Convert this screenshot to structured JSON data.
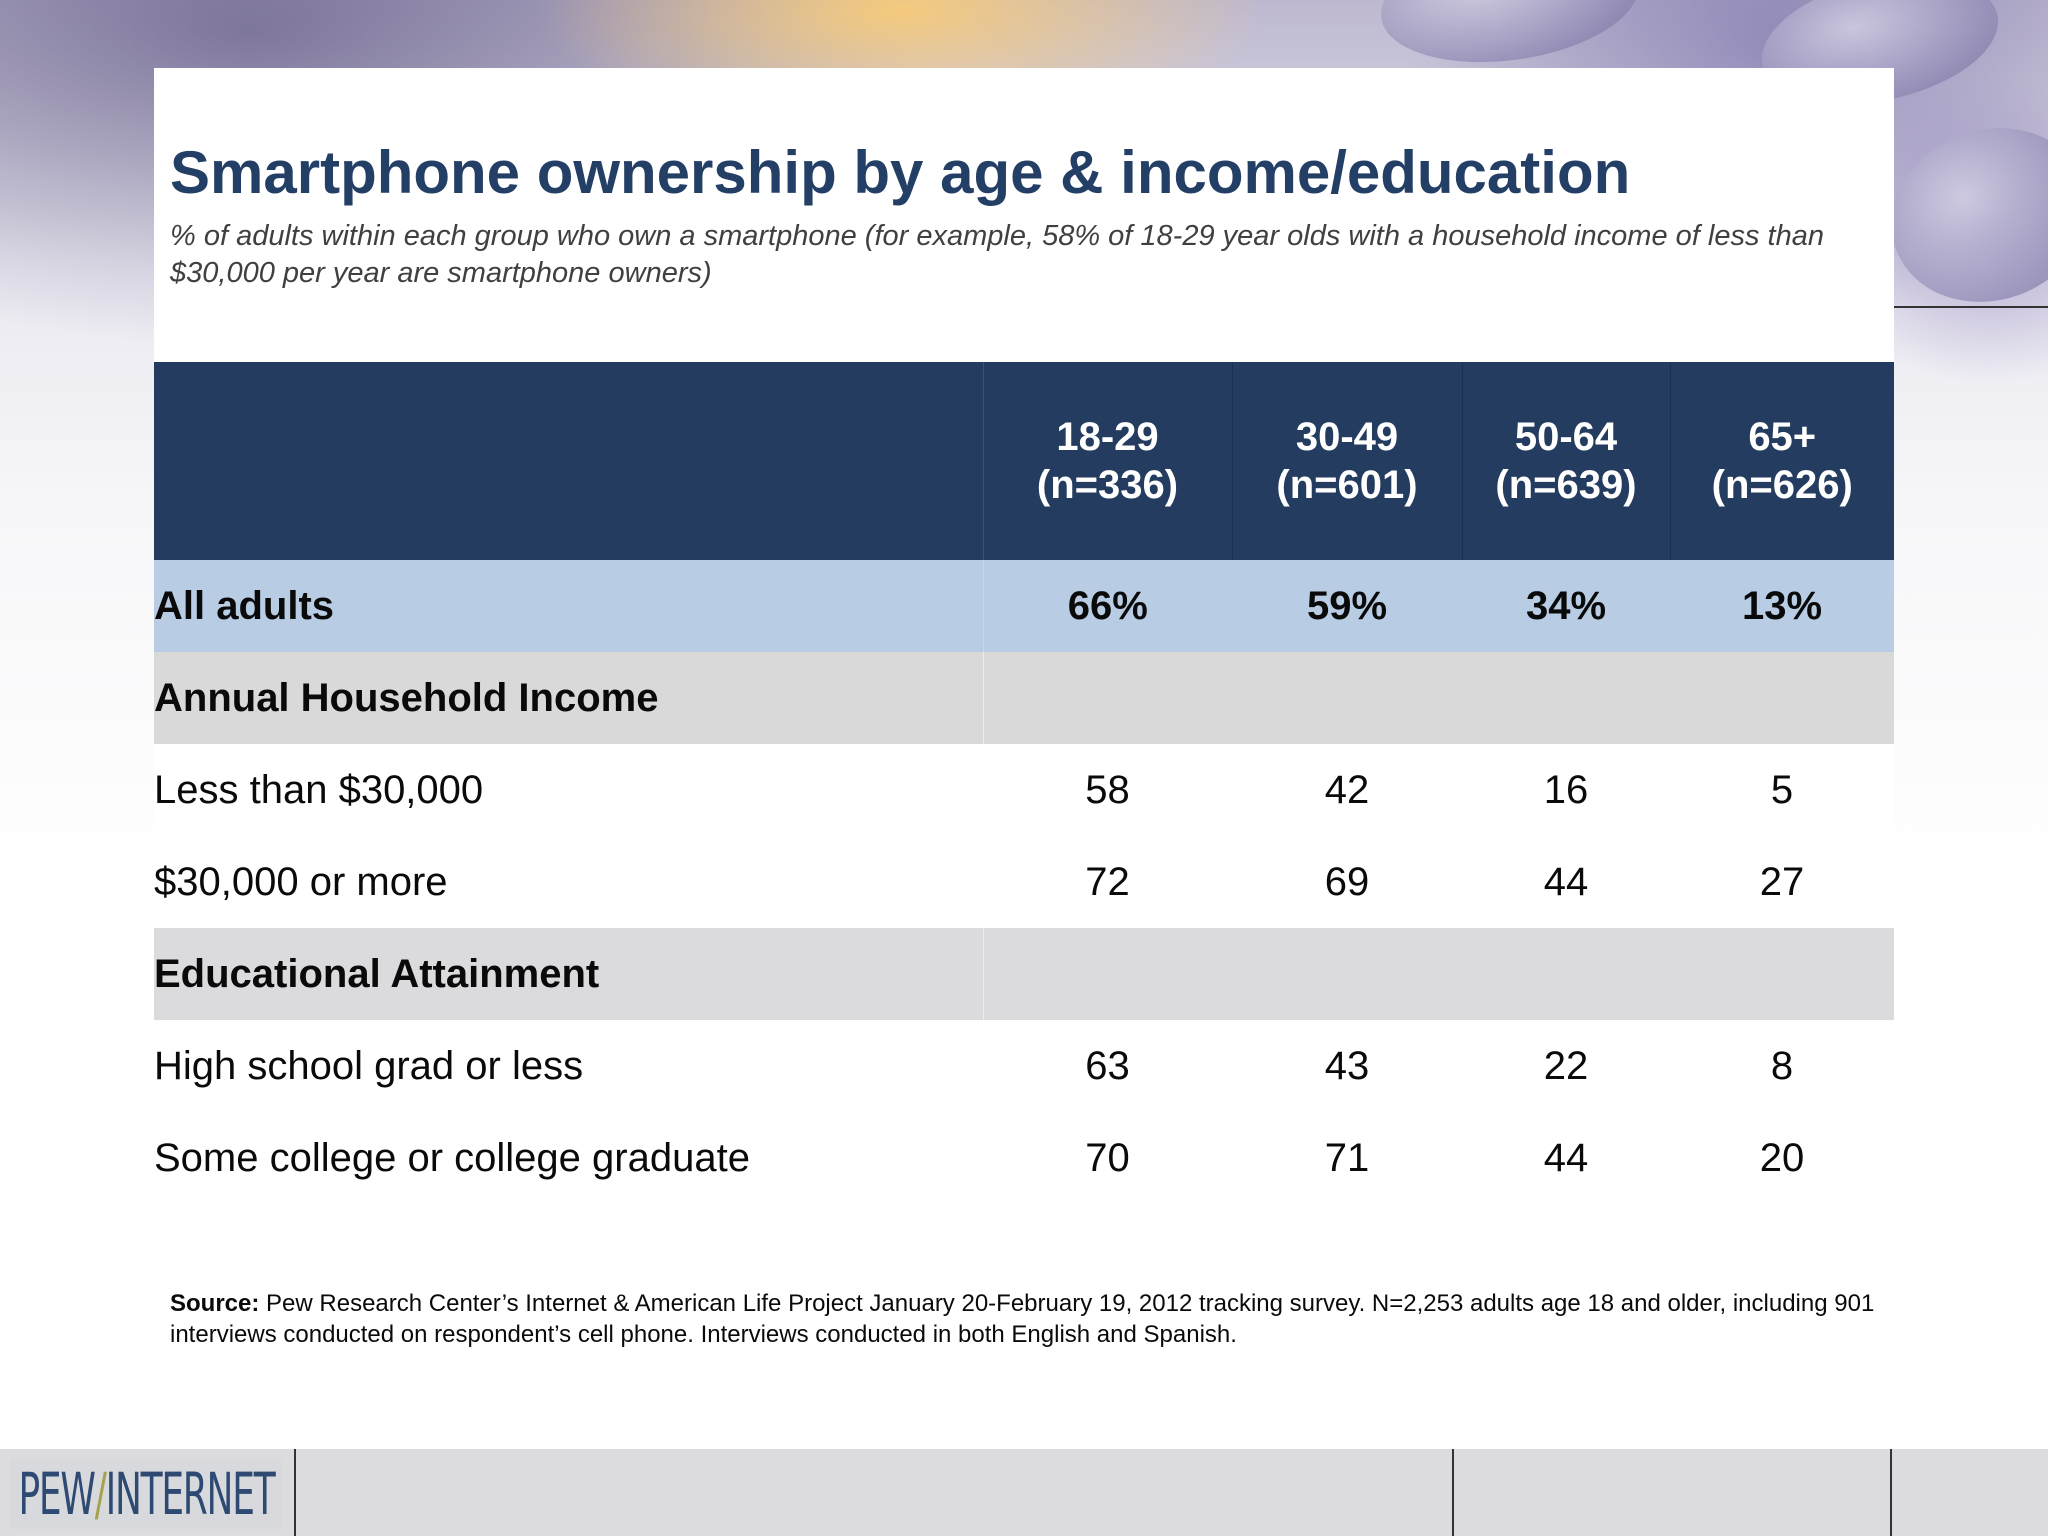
{
  "title": "Smartphone ownership by age & income/education",
  "subtitle": "% of adults within each group who own a smartphone (for example, 58% of 18-29 year olds with a household income of less than $30,000 per year are smartphone owners)",
  "table": {
    "columns": [
      {
        "group": "18-29",
        "n": "(n=336)"
      },
      {
        "group": "30-49",
        "n": "(n=601)"
      },
      {
        "group": "50-64",
        "n": "(n=639)"
      },
      {
        "group": "65+",
        "n": "(n=626)"
      }
    ],
    "all_adults": {
      "label": "All adults",
      "values": [
        "66%",
        "59%",
        "34%",
        "13%"
      ]
    },
    "income": {
      "heading": "Annual Household Income",
      "rows": [
        {
          "label": "Less than $30,000",
          "values": [
            "58",
            "42",
            "16",
            "5"
          ]
        },
        {
          "label": "$30,000 or more",
          "values": [
            "72",
            "69",
            "44",
            "27"
          ]
        }
      ]
    },
    "education": {
      "heading": "Educational Attainment",
      "rows": [
        {
          "label": "High school grad or less",
          "values": [
            "63",
            "43",
            "22",
            "8"
          ]
        },
        {
          "label": "Some college or college graduate",
          "values": [
            "70",
            "71",
            "44",
            "20"
          ]
        }
      ]
    }
  },
  "source": {
    "label": "Source:",
    "text": " Pew Research Center’s Internet & American Life Project January 20-February 19, 2012 tracking survey. N=2,253 adults age 18 and older, including 901 interviews conducted on respondent’s cell phone. Interviews conducted in both English and Spanish."
  },
  "footer": {
    "logo_left": "PEW",
    "logo_slash": "/",
    "logo_right": "INTERNET"
  },
  "colors": {
    "title": "#243f66",
    "header_bg": "#243c5f",
    "all_adults_bg": "#b8cde4",
    "section_bg": "#d9d9d9"
  }
}
